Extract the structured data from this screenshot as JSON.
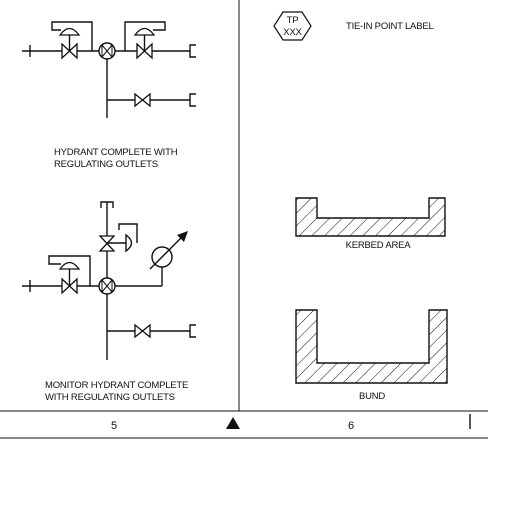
{
  "panels": {
    "hydrant": {
      "line1": "HYDRANT COMPLETE WITH",
      "line2": "REGULATING OUTLETS"
    },
    "monitor": {
      "line1": "MONITOR HYDRANT COMPLETE",
      "line2": "WITH REGULATING OUTLETS"
    },
    "tie_in": {
      "tag_top": "TP",
      "tag_bottom": "XXX",
      "label": "TIE-IN POINT LABEL"
    },
    "kerbed": {
      "label": "KERBED AREA"
    },
    "bund": {
      "label": "BUND"
    }
  },
  "footer": {
    "page_left": "5",
    "page_right": "6",
    "marker_icon": "triangle-marker-icon"
  }
}
